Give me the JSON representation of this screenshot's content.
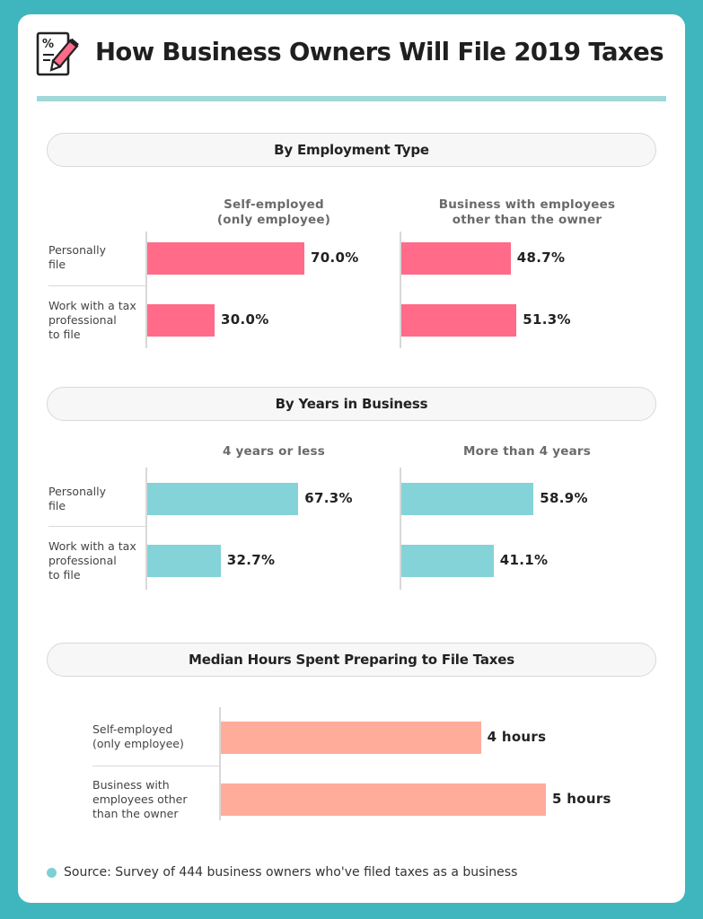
{
  "title": "How Business Owners Will File 2019 Taxes",
  "colors": {
    "pink": "#ff6b88",
    "teal": "#84d3d8",
    "salmon": "#ffac9a",
    "accent": "#3fb6bd"
  },
  "sections": {
    "employment": {
      "heading": "By Employment Type",
      "col1": [
        "Self-employed",
        "(only employee)"
      ],
      "col2": [
        "Business with employees",
        "other than the owner"
      ],
      "row1": [
        "Personally",
        "file"
      ],
      "row2": [
        "Work with a tax",
        "professional",
        "to file"
      ]
    },
    "years": {
      "heading": "By Years in Business",
      "col1": [
        "4 years or less"
      ],
      "col2": [
        "More than 4 years"
      ],
      "row1": [
        "Personally",
        "file"
      ],
      "row2": [
        "Work with a tax",
        "professional",
        "to file"
      ]
    },
    "hours": {
      "heading": "Median Hours Spent Preparing to File Taxes",
      "row1": [
        "Self-employed",
        "(only employee)"
      ],
      "row2": [
        "Business with",
        "employees other",
        "than the owner"
      ]
    }
  },
  "source": "Source: Survey of 444 business owners who've filed taxes as a business",
  "chart_data": [
    {
      "type": "bar",
      "title": "By Employment Type",
      "categories": [
        "Personally file",
        "Work with a tax professional to file"
      ],
      "series": [
        {
          "name": "Self-employed (only employee)",
          "values": [
            70.0,
            30.0
          ],
          "labels": [
            "70.0%",
            "30.0%"
          ]
        },
        {
          "name": "Business with employees other than the owner",
          "values": [
            48.7,
            51.3
          ],
          "labels": [
            "48.7%",
            "51.3%"
          ]
        }
      ],
      "unit": "%"
    },
    {
      "type": "bar",
      "title": "By Years in Business",
      "categories": [
        "Personally file",
        "Work with a tax professional to file"
      ],
      "series": [
        {
          "name": "4 years or less",
          "values": [
            67.3,
            32.7
          ],
          "labels": [
            "67.3%",
            "32.7%"
          ]
        },
        {
          "name": "More than 4 years",
          "values": [
            58.9,
            41.1
          ],
          "labels": [
            "58.9%",
            "41.1%"
          ]
        }
      ],
      "unit": "%"
    },
    {
      "type": "bar",
      "title": "Median Hours Spent Preparing to File Taxes",
      "categories": [
        "Self-employed (only employee)",
        "Business with employees other than the owner"
      ],
      "values": [
        4,
        5
      ],
      "labels": [
        "4 hours",
        "5 hours"
      ],
      "unit": "hours"
    }
  ]
}
